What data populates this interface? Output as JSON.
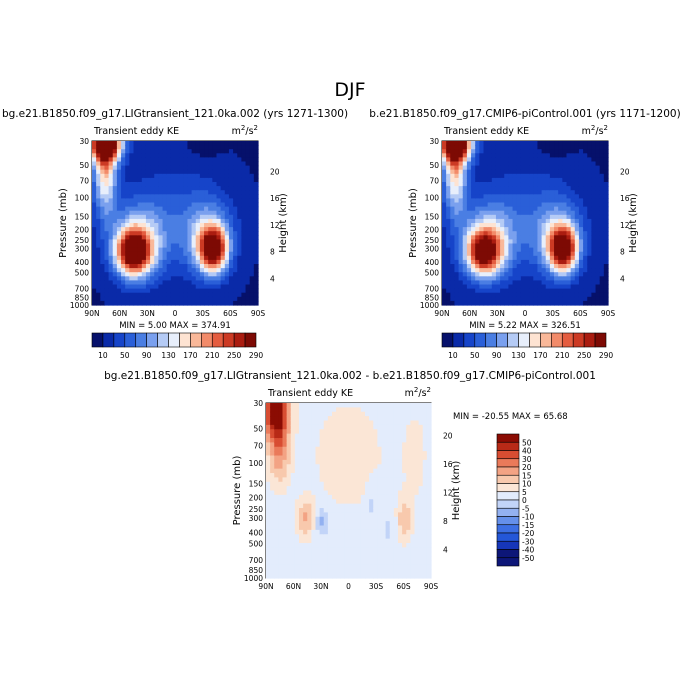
{
  "figure": {
    "super_title": "DJF"
  },
  "chart_data": [
    {
      "type": "heatmap",
      "title": "bg.e21.B1850.f09_g17.LIGtransient_121.0ka.002 (yrs 1271-1300)",
      "left_label": "Transient eddy KE",
      "units": "m²/s²",
      "units_base": "m",
      "units_sup": "2",
      "units_sep": "/s",
      "ylabel": "Pressure (mb)",
      "right_label": "Height (km)",
      "x_ticks": [
        "90N",
        "60N",
        "30N",
        "0",
        "30S",
        "60S",
        "90S"
      ],
      "y_ticks": [
        "30",
        "50",
        "70",
        "100",
        "150",
        "200",
        "250",
        "300",
        "400",
        "500",
        "700",
        "850",
        "1000"
      ],
      "height_ticks": [
        "20",
        "16",
        "12",
        "8",
        "4"
      ],
      "stats": "MIN =    5.00   MAX =  374.91",
      "min": 5.0,
      "max": 374.91,
      "colorbar_levels": [
        "10",
        "50",
        "90",
        "130",
        "170",
        "210",
        "250",
        "290"
      ]
    },
    {
      "type": "heatmap",
      "title": "b.e21.B1850.f09_g17.CMIP6-piControl.001 (yrs 1171-1200)",
      "left_label": "Transient eddy KE",
      "units": "m²/s²",
      "units_base": "m",
      "units_sup": "2",
      "units_sep": "/s",
      "ylabel": "Pressure (mb)",
      "right_label": "Height (km)",
      "x_ticks": [
        "90N",
        "60N",
        "30N",
        "0",
        "30S",
        "60S",
        "90S"
      ],
      "y_ticks": [
        "30",
        "50",
        "70",
        "100",
        "150",
        "200",
        "250",
        "300",
        "400",
        "500",
        "700",
        "850",
        "1000"
      ],
      "height_ticks": [
        "20",
        "16",
        "12",
        "8",
        "4"
      ],
      "stats": "MIN =    5.22   MAX =  326.51",
      "min": 5.22,
      "max": 326.51,
      "colorbar_levels": [
        "10",
        "50",
        "90",
        "130",
        "170",
        "210",
        "250",
        "290"
      ]
    },
    {
      "type": "heatmap",
      "title": "bg.e21.B1850.f09_g17.LIGtransient_121.0ka.002 - b.e21.B1850.f09_g17.CMIP6-piControl.001",
      "left_label": "Transient eddy KE",
      "units": "m²/s²",
      "units_base": "m",
      "units_sup": "2",
      "units_sep": "/s",
      "ylabel": "Pressure (mb)",
      "right_label": "Height (km)",
      "x_ticks": [
        "90N",
        "60N",
        "30N",
        "0",
        "30S",
        "60S",
        "90S"
      ],
      "y_ticks": [
        "30",
        "50",
        "70",
        "100",
        "150",
        "200",
        "250",
        "300",
        "400",
        "500",
        "700",
        "850",
        "1000"
      ],
      "height_ticks": [
        "20",
        "16",
        "12",
        "8",
        "4"
      ],
      "stats": "MIN = -20.55   MAX =  65.68",
      "min": -20.55,
      "max": 65.68,
      "colorbar_levels": [
        "50",
        "40",
        "30",
        "20",
        "15",
        "10",
        "5",
        "0",
        "-5",
        "-10",
        "-15",
        "-20",
        "-30",
        "-40",
        "-50"
      ]
    }
  ],
  "colors": {
    "abs_scale": [
      "#06116b",
      "#0a2aa8",
      "#1644c9",
      "#2a5fd8",
      "#4a7ee3",
      "#7aa0ee",
      "#b5cbf5",
      "#e8effb",
      "#fde3d2",
      "#f9b899",
      "#f28b6a",
      "#e45d40",
      "#cc3a24",
      "#aa1c10",
      "#7d0a04"
    ],
    "diff_scale": [
      "#0d1678",
      "#1636b9",
      "#2457d8",
      "#3d6fe3",
      "#6590ea",
      "#93b1f1",
      "#c2d4f8",
      "#e3ecfc",
      "#fbe6d6",
      "#f8c9ad",
      "#f3a384",
      "#ea7a5a",
      "#d84d32",
      "#b82a17",
      "#8b0c03"
    ]
  }
}
